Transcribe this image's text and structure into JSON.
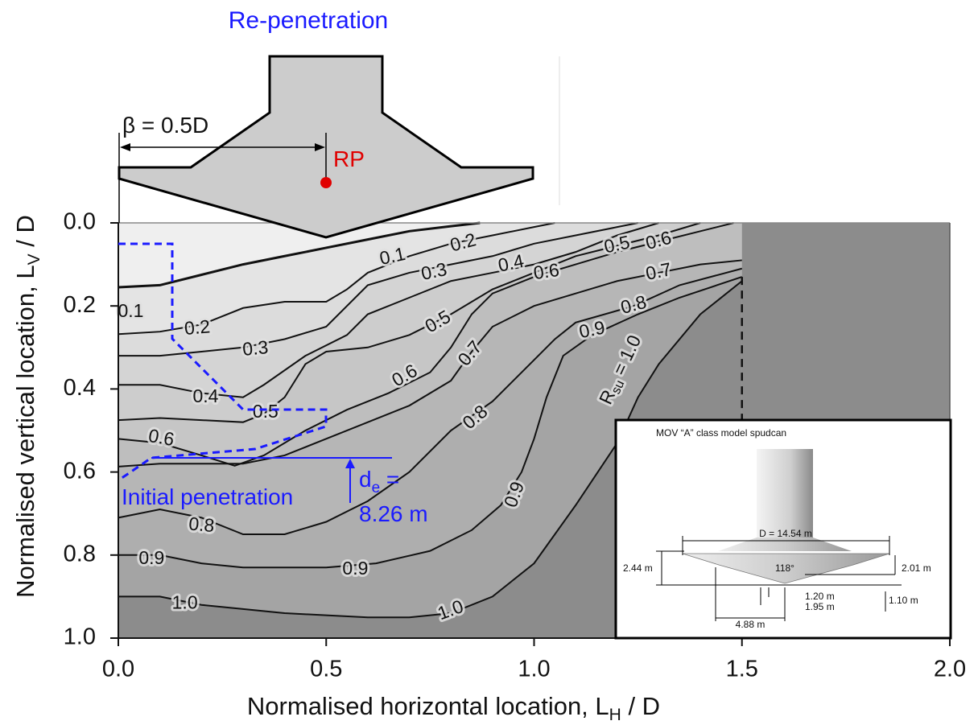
{
  "chart_data": {
    "type": "contour",
    "xlabel": [
      "Normalised horizontal location, L",
      "H",
      " / D"
    ],
    "ylabel": [
      "Normalised vertical location, L",
      "V",
      " / D"
    ],
    "xlim": [
      0,
      2
    ],
    "xticks": [
      {
        "value": 0,
        "label": "0.0"
      },
      0.5,
      {
        "value": 1,
        "label": "1.0"
      },
      1.5,
      {
        "value": 2,
        "label": "2.0"
      }
    ],
    "ylim": [
      1,
      0
    ],
    "yticks": [
      {
        "value": 0,
        "label": "0.0"
      },
      0.2,
      0.4,
      0.6,
      0.8,
      {
        "value": 1,
        "label": "1.0"
      }
    ],
    "background_color": "#efefef",
    "line_color": "#111111",
    "contours": [
      {
        "level": 0.1,
        "level_label": "0.1",
        "fill": "#e4e4e4",
        "x": [
          0,
          0.1,
          0.2,
          0.3,
          0.4,
          0.5,
          0.6,
          0.7,
          0.8,
          0.87
        ],
        "y": [
          0.155,
          0.15,
          0.125,
          0.1,
          0.08,
          0.06,
          0.04,
          0.02,
          0.008,
          0
        ]
      },
      {
        "level": 0.2,
        "level_label": "0.2",
        "fill": "#dcdcdc",
        "x": [
          0,
          0.1,
          0.2,
          0.3,
          0.4,
          0.5,
          0.55,
          0.6,
          0.7,
          0.8,
          0.9,
          1.0,
          1.05
        ],
        "y": [
          0.268,
          0.262,
          0.245,
          0.205,
          0.19,
          0.19,
          0.16,
          0.12,
          0.08,
          0.05,
          0.03,
          0.01,
          0
        ]
      },
      {
        "level": 0.3,
        "level_label": "0.3",
        "fill": "#d4d4d4",
        "x": [
          0,
          0.1,
          0.2,
          0.3,
          0.4,
          0.5,
          0.6,
          0.7,
          0.8,
          0.9,
          1.0,
          1.1,
          1.2,
          1.25
        ],
        "y": [
          0.32,
          0.32,
          0.31,
          0.3,
          0.28,
          0.25,
          0.15,
          0.12,
          0.1,
          0.08,
          0.05,
          0.03,
          0.01,
          0
        ]
      },
      {
        "level": 0.4,
        "level_label": "0.4",
        "fill": "#cdcdcd",
        "x": [
          0,
          0.1,
          0.2,
          0.3,
          0.35,
          0.45,
          0.55,
          0.6,
          0.7,
          0.8,
          0.9,
          1.0,
          1.1,
          1.2,
          1.3
        ],
        "y": [
          0.39,
          0.39,
          0.41,
          0.42,
          0.39,
          0.32,
          0.27,
          0.22,
          0.18,
          0.14,
          0.12,
          0.1,
          0.07,
          0.03,
          0
        ]
      },
      {
        "level": 0.5,
        "level_label": "0.5",
        "fill": "#c6c6c6",
        "x": [
          0,
          0.1,
          0.2,
          0.3,
          0.35,
          0.4,
          0.45,
          0.5,
          0.6,
          0.7,
          0.8,
          0.9,
          1.0,
          1.1,
          1.2,
          1.3,
          1.4
        ],
        "y": [
          0.475,
          0.47,
          0.475,
          0.48,
          0.46,
          0.42,
          0.34,
          0.31,
          0.3,
          0.27,
          0.22,
          0.16,
          0.12,
          0.08,
          0.055,
          0.03,
          0
        ]
      },
      {
        "level": 0.6,
        "level_label": "0.6",
        "fill": "#bebebe",
        "x": [
          0,
          0.1,
          0.2,
          0.28,
          0.35,
          0.45,
          0.55,
          0.65,
          0.75,
          0.8,
          0.85,
          0.9,
          1.0,
          1.1,
          1.2,
          1.3,
          1.4,
          1.48
        ],
        "y": [
          0.52,
          0.53,
          0.56,
          0.585,
          0.56,
          0.5,
          0.45,
          0.41,
          0.36,
          0.3,
          0.22,
          0.17,
          0.13,
          0.1,
          0.07,
          0.045,
          0.02,
          0
        ]
      },
      {
        "level": 0.7,
        "level_label": "0.7",
        "fill": "#b6b6b6",
        "x": [
          0,
          0.1,
          0.2,
          0.3,
          0.4,
          0.5,
          0.6,
          0.7,
          0.8,
          0.85,
          0.9,
          1.0,
          1.1,
          1.2,
          1.3,
          1.4,
          1.5
        ],
        "y": [
          0.587,
          0.58,
          0.58,
          0.58,
          0.56,
          0.52,
          0.48,
          0.44,
          0.38,
          0.31,
          0.25,
          0.2,
          0.17,
          0.14,
          0.12,
          0.1,
          0.09
        ]
      },
      {
        "level": 0.8,
        "level_label": "0.8",
        "fill": "#aeaeae",
        "x": [
          0,
          0.1,
          0.2,
          0.3,
          0.4,
          0.5,
          0.6,
          0.7,
          0.8,
          0.9,
          1.0,
          1.05,
          1.1,
          1.24,
          1.35,
          1.5
        ],
        "y": [
          0.71,
          0.69,
          0.71,
          0.75,
          0.75,
          0.72,
          0.67,
          0.6,
          0.5,
          0.43,
          0.33,
          0.28,
          0.24,
          0.2,
          0.15,
          0.11
        ]
      },
      {
        "level": 0.9,
        "level_label": "0.9",
        "fill": "#a4a4a4",
        "x": [
          0,
          0.1,
          0.2,
          0.3,
          0.4,
          0.5,
          0.62,
          0.75,
          0.85,
          0.92,
          0.97,
          1.0,
          1.03,
          1.07,
          1.14,
          1.25,
          1.35,
          1.5
        ],
        "y": [
          0.8,
          0.8,
          0.82,
          0.83,
          0.83,
          0.83,
          0.82,
          0.79,
          0.74,
          0.68,
          0.6,
          0.52,
          0.42,
          0.32,
          0.27,
          0.22,
          0.18,
          0.13
        ]
      },
      {
        "level": 1.0,
        "level_label": "1.0",
        "fill": "#8c8c8c",
        "x": [
          0,
          0.1,
          0.2,
          0.3,
          0.4,
          0.5,
          0.6,
          0.7,
          0.8,
          0.9,
          1.0,
          1.1,
          1.2,
          1.25,
          1.3,
          1.4,
          1.5
        ],
        "y": [
          0.9,
          0.9,
          0.92,
          0.93,
          0.94,
          0.945,
          0.95,
          0.95,
          0.94,
          0.9,
          0.82,
          0.68,
          0.53,
          0.42,
          0.34,
          0.22,
          0.14
        ]
      }
    ],
    "rsu_label": [
      "R",
      "su",
      " = 1.0"
    ]
  },
  "annotations": {
    "re_penetration": "Re-penetration",
    "beta": "β = 0.5D",
    "rp": "RP",
    "initial_penetration": "Initial penetration",
    "de": [
      "d",
      "e",
      " ="
    ],
    "de_value": "8.26 m"
  },
  "inset": {
    "title": "MOV “A” class model spudcan",
    "diameter": "D = 14.54 m",
    "height_total": "2.44 m",
    "angle": "118°",
    "height_plate": "2.01 m",
    "tip_a": "1.20 m",
    "tip_b": "1.95 m",
    "tip_height": "1.10 m",
    "width": "4.88 m"
  }
}
